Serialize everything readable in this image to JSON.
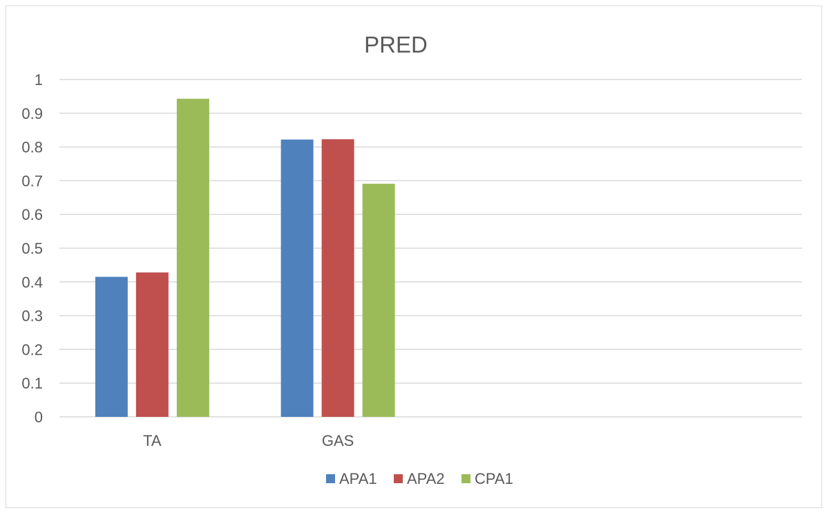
{
  "chart_data": {
    "type": "bar",
    "title": "PRED",
    "xlabel": "",
    "ylabel": "",
    "categories": [
      "TA",
      "GAS"
    ],
    "slot_count": 4,
    "series": [
      {
        "name": "APA1",
        "color": "#4f81bd",
        "values": [
          0.415,
          0.822
        ]
      },
      {
        "name": "APA2",
        "color": "#c0504d",
        "values": [
          0.428,
          0.823
        ]
      },
      {
        "name": "CPA1",
        "color": "#9bbb59",
        "values": [
          0.943,
          0.691
        ]
      }
    ],
    "ylim": [
      0,
      1
    ],
    "yticks": [
      "0",
      "0.1",
      "0.2",
      "0.3",
      "0.4",
      "0.5",
      "0.6",
      "0.7",
      "0.8",
      "0.9",
      "1"
    ],
    "grid": true,
    "legend_position": "bottom"
  }
}
